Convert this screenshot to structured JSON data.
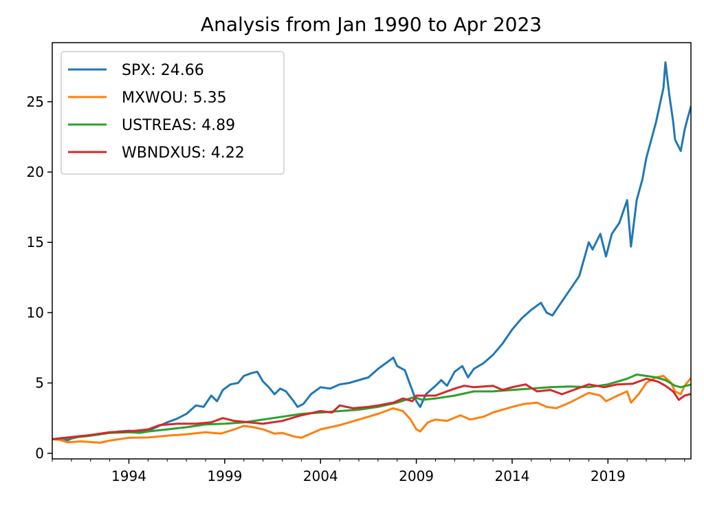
{
  "chart_data": {
    "type": "line",
    "title": "Analysis from Jan 1990 to Apr 2023",
    "xlabel": "",
    "ylabel": "",
    "xlim": [
      1990.0,
      2023.33
    ],
    "ylim": [
      -0.4,
      29.2
    ],
    "x_ticks": [
      {
        "value": 1994,
        "label": "1994"
      },
      {
        "value": 1999,
        "label": "1999"
      },
      {
        "value": 2004,
        "label": "2004"
      },
      {
        "value": 2009,
        "label": "2009"
      },
      {
        "value": 2014,
        "label": "2014"
      },
      {
        "value": 2019,
        "label": "2019"
      }
    ],
    "y_ticks": [
      {
        "value": 0,
        "label": "0"
      },
      {
        "value": 5,
        "label": "5"
      },
      {
        "value": 10,
        "label": "10"
      },
      {
        "value": 15,
        "label": "15"
      },
      {
        "value": 20,
        "label": "20"
      },
      {
        "value": 25,
        "label": "25"
      }
    ],
    "grid": false,
    "legend_position": "top-left",
    "series": [
      {
        "name": "SPX: 24.66",
        "color": "#1f77b4",
        "points": [
          [
            1990.0,
            1.0
          ],
          [
            1990.5,
            1.08
          ],
          [
            1990.8,
            0.92
          ],
          [
            1991.0,
            1.05
          ],
          [
            1991.5,
            1.2
          ],
          [
            1992.0,
            1.3
          ],
          [
            1992.5,
            1.35
          ],
          [
            1993.0,
            1.45
          ],
          [
            1993.5,
            1.55
          ],
          [
            1994.0,
            1.6
          ],
          [
            1994.5,
            1.58
          ],
          [
            1995.0,
            1.6
          ],
          [
            1995.5,
            1.9
          ],
          [
            1996.0,
            2.2
          ],
          [
            1996.5,
            2.45
          ],
          [
            1997.0,
            2.8
          ],
          [
            1997.5,
            3.4
          ],
          [
            1997.9,
            3.3
          ],
          [
            1998.3,
            4.1
          ],
          [
            1998.6,
            3.7
          ],
          [
            1998.9,
            4.5
          ],
          [
            1999.3,
            4.9
          ],
          [
            1999.7,
            5.0
          ],
          [
            2000.0,
            5.5
          ],
          [
            2000.4,
            5.7
          ],
          [
            2000.7,
            5.8
          ],
          [
            2001.0,
            5.1
          ],
          [
            2001.3,
            4.7
          ],
          [
            2001.6,
            4.2
          ],
          [
            2001.9,
            4.6
          ],
          [
            2002.2,
            4.4
          ],
          [
            2002.6,
            3.7
          ],
          [
            2002.8,
            3.3
          ],
          [
            2003.1,
            3.5
          ],
          [
            2003.5,
            4.2
          ],
          [
            2004.0,
            4.7
          ],
          [
            2004.5,
            4.6
          ],
          [
            2005.0,
            4.9
          ],
          [
            2005.5,
            5.0
          ],
          [
            2006.0,
            5.2
          ],
          [
            2006.5,
            5.4
          ],
          [
            2007.0,
            6.0
          ],
          [
            2007.5,
            6.5
          ],
          [
            2007.8,
            6.8
          ],
          [
            2008.0,
            6.2
          ],
          [
            2008.4,
            5.9
          ],
          [
            2008.7,
            4.8
          ],
          [
            2009.0,
            3.7
          ],
          [
            2009.2,
            3.3
          ],
          [
            2009.5,
            4.2
          ],
          [
            2010.0,
            4.8
          ],
          [
            2010.3,
            5.2
          ],
          [
            2010.6,
            4.8
          ],
          [
            2011.0,
            5.8
          ],
          [
            2011.4,
            6.2
          ],
          [
            2011.7,
            5.4
          ],
          [
            2012.0,
            6.0
          ],
          [
            2012.5,
            6.4
          ],
          [
            2013.0,
            7.0
          ],
          [
            2013.5,
            7.8
          ],
          [
            2014.0,
            8.8
          ],
          [
            2014.5,
            9.6
          ],
          [
            2015.0,
            10.2
          ],
          [
            2015.5,
            10.7
          ],
          [
            2015.8,
            10.0
          ],
          [
            2016.1,
            9.8
          ],
          [
            2016.5,
            10.6
          ],
          [
            2017.0,
            11.6
          ],
          [
            2017.5,
            12.6
          ],
          [
            2018.0,
            15.0
          ],
          [
            2018.2,
            14.5
          ],
          [
            2018.6,
            15.6
          ],
          [
            2018.9,
            14.0
          ],
          [
            2019.2,
            15.6
          ],
          [
            2019.6,
            16.4
          ],
          [
            2020.0,
            18.0
          ],
          [
            2020.2,
            14.7
          ],
          [
            2020.5,
            18.0
          ],
          [
            2020.8,
            19.5
          ],
          [
            2021.0,
            21.0
          ],
          [
            2021.5,
            23.5
          ],
          [
            2021.9,
            26.0
          ],
          [
            2022.0,
            27.8
          ],
          [
            2022.2,
            25.5
          ],
          [
            2022.4,
            23.6
          ],
          [
            2022.5,
            22.3
          ],
          [
            2022.8,
            21.5
          ],
          [
            2023.0,
            23.0
          ],
          [
            2023.15,
            23.8
          ],
          [
            2023.33,
            24.66
          ]
        ]
      },
      {
        "name": "MXWOU: 5.35",
        "color": "#ff7f0e",
        "points": [
          [
            1990.0,
            1.0
          ],
          [
            1990.4,
            0.95
          ],
          [
            1990.8,
            0.78
          ],
          [
            1991.5,
            0.85
          ],
          [
            1992.0,
            0.8
          ],
          [
            1992.5,
            0.75
          ],
          [
            1993.0,
            0.9
          ],
          [
            1993.5,
            1.0
          ],
          [
            1994.0,
            1.1
          ],
          [
            1995.0,
            1.12
          ],
          [
            1996.0,
            1.25
          ],
          [
            1997.0,
            1.35
          ],
          [
            1998.0,
            1.5
          ],
          [
            1998.8,
            1.4
          ],
          [
            1999.5,
            1.7
          ],
          [
            2000.0,
            1.95
          ],
          [
            2000.5,
            1.85
          ],
          [
            2001.0,
            1.7
          ],
          [
            2001.6,
            1.4
          ],
          [
            2002.0,
            1.45
          ],
          [
            2002.6,
            1.2
          ],
          [
            2003.0,
            1.1
          ],
          [
            2003.5,
            1.4
          ],
          [
            2004.0,
            1.7
          ],
          [
            2005.0,
            2.0
          ],
          [
            2006.0,
            2.4
          ],
          [
            2007.0,
            2.8
          ],
          [
            2007.8,
            3.2
          ],
          [
            2008.3,
            3.0
          ],
          [
            2008.7,
            2.4
          ],
          [
            2009.0,
            1.7
          ],
          [
            2009.2,
            1.55
          ],
          [
            2009.6,
            2.2
          ],
          [
            2010.0,
            2.4
          ],
          [
            2010.6,
            2.3
          ],
          [
            2011.3,
            2.7
          ],
          [
            2011.8,
            2.4
          ],
          [
            2012.5,
            2.6
          ],
          [
            2013.0,
            2.9
          ],
          [
            2014.0,
            3.3
          ],
          [
            2014.6,
            3.5
          ],
          [
            2015.3,
            3.6
          ],
          [
            2015.8,
            3.3
          ],
          [
            2016.3,
            3.2
          ],
          [
            2017.0,
            3.6
          ],
          [
            2018.0,
            4.3
          ],
          [
            2018.6,
            4.1
          ],
          [
            2018.9,
            3.7
          ],
          [
            2019.5,
            4.1
          ],
          [
            2020.0,
            4.4
          ],
          [
            2020.2,
            3.6
          ],
          [
            2020.6,
            4.2
          ],
          [
            2021.0,
            5.0
          ],
          [
            2021.5,
            5.4
          ],
          [
            2021.9,
            5.5
          ],
          [
            2022.3,
            5.0
          ],
          [
            2022.5,
            4.4
          ],
          [
            2022.8,
            4.2
          ],
          [
            2023.0,
            4.8
          ],
          [
            2023.33,
            5.35
          ]
        ]
      },
      {
        "name": "USTREAS: 4.89",
        "color": "#2ca02c",
        "points": [
          [
            1990.0,
            1.0
          ],
          [
            1991.0,
            1.1
          ],
          [
            1992.0,
            1.25
          ],
          [
            1993.0,
            1.45
          ],
          [
            1994.0,
            1.5
          ],
          [
            1994.6,
            1.45
          ],
          [
            1995.0,
            1.55
          ],
          [
            1996.0,
            1.7
          ],
          [
            1997.0,
            1.85
          ],
          [
            1998.0,
            2.05
          ],
          [
            1999.0,
            2.1
          ],
          [
            2000.0,
            2.2
          ],
          [
            2001.0,
            2.4
          ],
          [
            2002.0,
            2.6
          ],
          [
            2003.0,
            2.8
          ],
          [
            2004.0,
            2.9
          ],
          [
            2005.0,
            3.0
          ],
          [
            2006.0,
            3.1
          ],
          [
            2007.0,
            3.3
          ],
          [
            2008.0,
            3.6
          ],
          [
            2008.9,
            4.0
          ],
          [
            2009.3,
            3.8
          ],
          [
            2010.0,
            3.9
          ],
          [
            2011.0,
            4.1
          ],
          [
            2012.0,
            4.4
          ],
          [
            2013.0,
            4.4
          ],
          [
            2014.0,
            4.5
          ],
          [
            2015.0,
            4.6
          ],
          [
            2016.0,
            4.7
          ],
          [
            2017.0,
            4.75
          ],
          [
            2018.0,
            4.7
          ],
          [
            2019.0,
            4.9
          ],
          [
            2020.0,
            5.3
          ],
          [
            2020.5,
            5.6
          ],
          [
            2021.0,
            5.5
          ],
          [
            2021.5,
            5.4
          ],
          [
            2022.0,
            5.2
          ],
          [
            2022.5,
            4.8
          ],
          [
            2022.8,
            4.7
          ],
          [
            2023.33,
            4.89
          ]
        ]
      },
      {
        "name": "WBNDXUS: 4.22",
        "color": "#d62728",
        "points": [
          [
            1990.0,
            1.0
          ],
          [
            1991.0,
            1.15
          ],
          [
            1992.0,
            1.3
          ],
          [
            1993.0,
            1.5
          ],
          [
            1994.0,
            1.55
          ],
          [
            1995.0,
            1.7
          ],
          [
            1995.6,
            2.0
          ],
          [
            1996.5,
            2.1
          ],
          [
            1997.5,
            2.1
          ],
          [
            1998.3,
            2.2
          ],
          [
            1998.9,
            2.5
          ],
          [
            1999.5,
            2.3
          ],
          [
            2000.3,
            2.2
          ],
          [
            2001.0,
            2.1
          ],
          [
            2002.0,
            2.3
          ],
          [
            2003.0,
            2.7
          ],
          [
            2004.0,
            3.0
          ],
          [
            2004.6,
            2.9
          ],
          [
            2005.0,
            3.4
          ],
          [
            2005.7,
            3.2
          ],
          [
            2006.5,
            3.3
          ],
          [
            2007.0,
            3.4
          ],
          [
            2007.8,
            3.6
          ],
          [
            2008.3,
            3.9
          ],
          [
            2008.8,
            3.7
          ],
          [
            2009.0,
            4.1
          ],
          [
            2010.0,
            4.1
          ],
          [
            2011.0,
            4.6
          ],
          [
            2011.5,
            4.8
          ],
          [
            2012.0,
            4.7
          ],
          [
            2013.0,
            4.8
          ],
          [
            2013.5,
            4.5
          ],
          [
            2014.0,
            4.7
          ],
          [
            2014.7,
            4.9
          ],
          [
            2015.3,
            4.4
          ],
          [
            2016.0,
            4.5
          ],
          [
            2016.6,
            4.2
          ],
          [
            2017.0,
            4.4
          ],
          [
            2018.0,
            4.9
          ],
          [
            2018.8,
            4.7
          ],
          [
            2019.5,
            4.9
          ],
          [
            2020.3,
            4.95
          ],
          [
            2021.0,
            5.3
          ],
          [
            2021.6,
            5.1
          ],
          [
            2022.0,
            4.8
          ],
          [
            2022.4,
            4.4
          ],
          [
            2022.7,
            3.8
          ],
          [
            2023.0,
            4.1
          ],
          [
            2023.33,
            4.22
          ]
        ]
      }
    ]
  }
}
